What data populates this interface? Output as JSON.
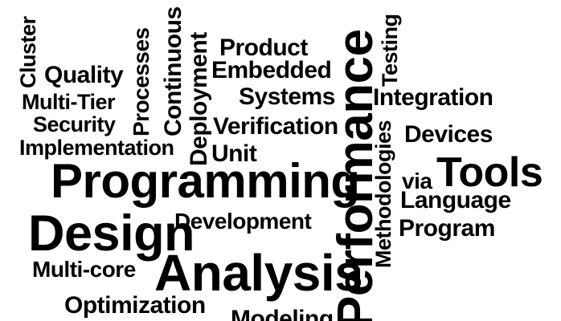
{
  "word_cloud": {
    "words": {
      "cluster": "Cluster",
      "quality": "Quality",
      "multi_tier": "Multi-Tier",
      "security": "Security",
      "implementation": "Implementation",
      "processes": "Processes",
      "continuous": "Continuous",
      "deployment": "Deployment",
      "product": "Product",
      "embedded": "Embedded",
      "systems": "Systems",
      "verification": "Verification",
      "unit": "Unit",
      "programming": "Programming",
      "design": "Design",
      "development": "Development",
      "multi_core": "Multi-core",
      "analysis": "Analysis",
      "optimization": "Optimization",
      "modeling": "Modeling",
      "performance": "Performance",
      "methodologies": "Methodologies",
      "testing": "Testing",
      "integration": "Integration",
      "devices": "Devices",
      "via": "via",
      "tools": "Tools",
      "language": "Language",
      "program": "Program"
    }
  }
}
